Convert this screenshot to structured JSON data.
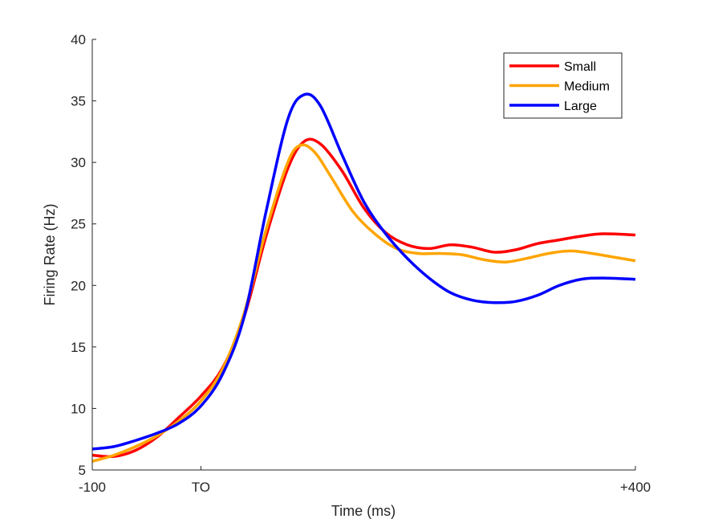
{
  "chart_data": {
    "type": "line",
    "title": "",
    "xlabel": "Time (ms)",
    "ylabel": "Firing Rate (Hz)",
    "xlim": [
      -100,
      400
    ],
    "ylim": [
      5,
      40
    ],
    "xticks": [
      {
        "value": -100,
        "label": "-100"
      },
      {
        "value": 0,
        "label": "TO"
      },
      {
        "value": 400,
        "label": "+400"
      }
    ],
    "yticks": [
      5,
      10,
      15,
      20,
      25,
      30,
      35,
      40
    ],
    "grid": false,
    "legend_position": "top-right",
    "series": [
      {
        "name": "Small",
        "color": "#ff0000",
        "points": [
          [
            -100,
            6.2
          ],
          [
            -80,
            6.1
          ],
          [
            -60,
            6.6
          ],
          [
            -40,
            7.7
          ],
          [
            -20,
            9.3
          ],
          [
            0,
            11.0
          ],
          [
            20,
            13.3
          ],
          [
            40,
            17.5
          ],
          [
            60,
            24.0
          ],
          [
            80,
            29.5
          ],
          [
            95,
            31.7
          ],
          [
            110,
            31.5
          ],
          [
            130,
            29.3
          ],
          [
            150,
            26.3
          ],
          [
            170,
            24.3
          ],
          [
            190,
            23.3
          ],
          [
            210,
            23.0
          ],
          [
            230,
            23.3
          ],
          [
            250,
            23.1
          ],
          [
            270,
            22.7
          ],
          [
            290,
            22.9
          ],
          [
            310,
            23.4
          ],
          [
            330,
            23.7
          ],
          [
            350,
            24.0
          ],
          [
            370,
            24.2
          ],
          [
            400,
            24.1
          ]
        ]
      },
      {
        "name": "Medium",
        "color": "#ffa500",
        "points": [
          [
            -100,
            5.7
          ],
          [
            -80,
            6.2
          ],
          [
            -60,
            6.9
          ],
          [
            -40,
            7.8
          ],
          [
            -20,
            9.0
          ],
          [
            0,
            10.6
          ],
          [
            20,
            13.2
          ],
          [
            40,
            17.8
          ],
          [
            60,
            24.5
          ],
          [
            80,
            30.0
          ],
          [
            92,
            31.4
          ],
          [
            105,
            30.8
          ],
          [
            120,
            28.8
          ],
          [
            140,
            26.0
          ],
          [
            160,
            24.2
          ],
          [
            180,
            23.0
          ],
          [
            200,
            22.6
          ],
          [
            220,
            22.6
          ],
          [
            240,
            22.5
          ],
          [
            260,
            22.1
          ],
          [
            280,
            21.9
          ],
          [
            300,
            22.2
          ],
          [
            320,
            22.6
          ],
          [
            340,
            22.8
          ],
          [
            360,
            22.6
          ],
          [
            380,
            22.3
          ],
          [
            400,
            22.0
          ]
        ]
      },
      {
        "name": "Large",
        "color": "#0000ff",
        "points": [
          [
            -100,
            6.7
          ],
          [
            -80,
            6.9
          ],
          [
            -60,
            7.4
          ],
          [
            -40,
            8.0
          ],
          [
            -20,
            8.8
          ],
          [
            0,
            10.2
          ],
          [
            20,
            12.8
          ],
          [
            40,
            17.5
          ],
          [
            60,
            26.0
          ],
          [
            80,
            33.5
          ],
          [
            95,
            35.5
          ],
          [
            110,
            34.6
          ],
          [
            130,
            30.6
          ],
          [
            150,
            26.8
          ],
          [
            170,
            24.2
          ],
          [
            190,
            22.2
          ],
          [
            210,
            20.6
          ],
          [
            230,
            19.4
          ],
          [
            250,
            18.8
          ],
          [
            270,
            18.6
          ],
          [
            290,
            18.7
          ],
          [
            310,
            19.2
          ],
          [
            330,
            20.0
          ],
          [
            350,
            20.5
          ],
          [
            370,
            20.6
          ],
          [
            400,
            20.5
          ]
        ]
      }
    ]
  }
}
